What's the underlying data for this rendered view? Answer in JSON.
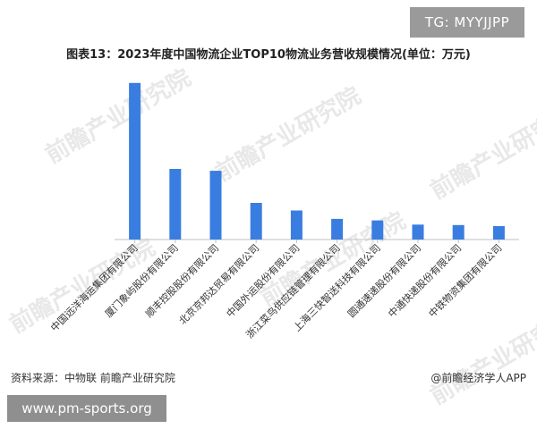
{
  "badge_text": "TG: MYYJJPP",
  "watermark_text": "前瞻产业研究院",
  "source_text": "资料来源：中物联 前瞻产业研究院",
  "credit_text": "@前瞻经济学人APP",
  "site_text": "www.pm-sports.org",
  "colors": {
    "bar": "#3a7de0",
    "axis": "#bfbfbf",
    "label": "#333333"
  },
  "chart_data": {
    "type": "bar",
    "title": "图表13：2023年度中国物流企业TOP10物流业务营收规模情况(单位：万元)",
    "categories": [
      "中国远洋海运集团有限公司",
      "厦门象屿股份有限公司",
      "顺丰控股股份有限公司",
      "北京京邦达贸易有限公司",
      "中国外运股份有限公司",
      "浙江菜鸟供应链管理有限公司",
      "上海三快智送科技有限公司",
      "圆通速递股份有限公司",
      "中通快递股份有限公司",
      "中铁物资集团有限公司"
    ],
    "values": [
      41000,
      18500,
      18000,
      9600,
      7600,
      5400,
      5000,
      3900,
      3800,
      3500
    ],
    "ylim": [
      0,
      44000
    ],
    "grid": false,
    "legend": "none"
  }
}
